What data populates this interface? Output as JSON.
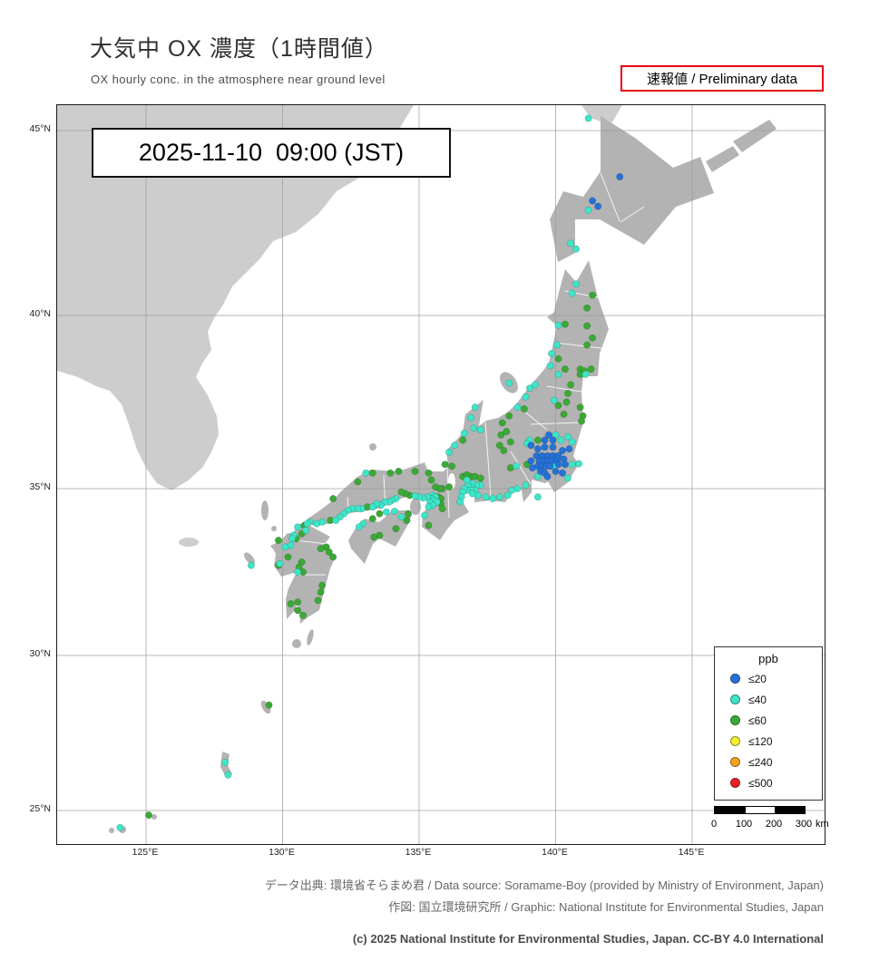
{
  "header": {
    "title": "大気中 OX 濃度（1時間値）",
    "subtitle": "OX hourly conc. in the atmosphere near ground level",
    "preliminary_label": "速報値 / Preliminary data",
    "timestamp": "2025-11-10  09:00 (JST)"
  },
  "map": {
    "lat_ticks": [
      {
        "label": "45°N",
        "value": 45
      },
      {
        "label": "40°N",
        "value": 40
      },
      {
        "label": "35°N",
        "value": 35
      },
      {
        "label": "30°N",
        "value": 30
      },
      {
        "label": "25°N",
        "value": 25
      }
    ],
    "lon_ticks": [
      {
        "label": "125°E",
        "value": 125
      },
      {
        "label": "130°E",
        "value": 130
      },
      {
        "label": "135°E",
        "value": 135
      },
      {
        "label": "140°E",
        "value": 140
      },
      {
        "label": "145°E",
        "value": 145
      }
    ]
  },
  "legend": {
    "title": "ppb",
    "items": [
      {
        "key": "le20",
        "label": "≤20",
        "color": "#2472d8"
      },
      {
        "key": "le40",
        "label": "≤40",
        "color": "#3ce6c8"
      },
      {
        "key": "le60",
        "label": "≤60",
        "color": "#3aaa35"
      },
      {
        "key": "le120",
        "label": "≤120",
        "color": "#f7ef2f"
      },
      {
        "key": "le240",
        "label": "≤240",
        "color": "#f9a11b"
      },
      {
        "key": "le500",
        "label": "≤500",
        "color": "#ed1c24"
      }
    ]
  },
  "scalebar": {
    "tick_labels": [
      "0",
      "100",
      "200",
      "300"
    ],
    "unit": "km"
  },
  "footer": {
    "source": "データ出典: 環境省そらまめ君 / Data source: Soramame-Boy (provided by Ministry of Environment, Japan)",
    "graphic": "作図: 国立環境研究所 / Graphic: National Institute for Environmental Studies, Japan",
    "copyright": "(c) 2025 National Institute for Environmental Studies, Japan. CC-BY 4.0 International"
  },
  "chart_data": {
    "type": "scatter",
    "units": {
      "x": "longitude_deg_E",
      "y": "latitude_deg_N",
      "value": "ppb_category"
    },
    "stations": {
      "le20": [
        [
          142.35,
          43.75
        ],
        [
          141.35,
          43.1
        ],
        [
          141.55,
          42.95
        ],
        [
          139.75,
          36.55
        ],
        [
          139.9,
          36.4
        ],
        [
          139.6,
          36.4
        ],
        [
          139.1,
          36.25
        ],
        [
          140.5,
          36.15
        ],
        [
          140.25,
          36.1
        ],
        [
          139.9,
          36.2
        ],
        [
          139.6,
          36.2
        ],
        [
          139.35,
          36.15
        ],
        [
          139.3,
          35.95
        ],
        [
          139.5,
          35.95
        ],
        [
          139.7,
          35.95
        ],
        [
          139.9,
          35.95
        ],
        [
          140.1,
          35.95
        ],
        [
          139.4,
          35.8
        ],
        [
          139.55,
          35.8
        ],
        [
          139.7,
          35.8
        ],
        [
          139.85,
          35.8
        ],
        [
          140.05,
          35.8
        ],
        [
          140.3,
          35.85
        ],
        [
          139.35,
          35.65
        ],
        [
          139.5,
          35.65
        ],
        [
          139.65,
          35.65
        ],
        [
          139.8,
          35.65
        ],
        [
          140.1,
          35.7
        ],
        [
          140.35,
          35.7
        ],
        [
          139.45,
          35.5
        ],
        [
          139.6,
          35.45
        ],
        [
          139.7,
          35.35
        ],
        [
          140.0,
          35.5
        ],
        [
          140.25,
          35.45
        ],
        [
          139.15,
          35.6
        ],
        [
          139.1,
          35.8
        ]
      ],
      "le40": [
        [
          141.2,
          45.33
        ],
        [
          141.2,
          42.85
        ],
        [
          140.75,
          41.8
        ],
        [
          140.55,
          41.95
        ],
        [
          140.75,
          40.85
        ],
        [
          140.6,
          40.6
        ],
        [
          140.1,
          39.72
        ],
        [
          140.05,
          39.15
        ],
        [
          139.85,
          38.9
        ],
        [
          139.8,
          38.55
        ],
        [
          139.05,
          37.9
        ],
        [
          139.25,
          38.0
        ],
        [
          138.9,
          37.65
        ],
        [
          138.6,
          37.35
        ],
        [
          138.3,
          38.05
        ],
        [
          140.1,
          38.3
        ],
        [
          141.1,
          38.3
        ],
        [
          139.95,
          37.55
        ],
        [
          140.0,
          36.55
        ],
        [
          139.05,
          36.4
        ],
        [
          138.95,
          36.3
        ],
        [
          140.2,
          36.4
        ],
        [
          140.45,
          36.5
        ],
        [
          140.6,
          36.35
        ],
        [
          139.95,
          35.65
        ],
        [
          140.6,
          35.7
        ],
        [
          140.85,
          35.72
        ],
        [
          139.35,
          35.35
        ],
        [
          140.45,
          35.3
        ],
        [
          139.35,
          34.75
        ],
        [
          138.55,
          35.65
        ],
        [
          138.9,
          35.1
        ],
        [
          138.6,
          35.0
        ],
        [
          138.4,
          34.95
        ],
        [
          138.25,
          34.8
        ],
        [
          137.95,
          34.75
        ],
        [
          137.7,
          34.7
        ],
        [
          137.45,
          34.75
        ],
        [
          137.25,
          35.1
        ],
        [
          137.1,
          35.1
        ],
        [
          136.95,
          35.15
        ],
        [
          136.9,
          35.05
        ],
        [
          136.8,
          35.1
        ],
        [
          137.05,
          34.95
        ],
        [
          136.9,
          34.95
        ],
        [
          136.75,
          34.95
        ],
        [
          137.15,
          34.8
        ],
        [
          136.95,
          34.85
        ],
        [
          136.65,
          35.0
        ],
        [
          136.75,
          35.25
        ],
        [
          136.6,
          34.9
        ],
        [
          136.55,
          34.75
        ],
        [
          136.5,
          34.6
        ],
        [
          137.25,
          36.7
        ],
        [
          137.0,
          36.75
        ],
        [
          136.65,
          36.6
        ],
        [
          136.3,
          36.25
        ],
        [
          136.1,
          36.05
        ],
        [
          136.9,
          37.05
        ],
        [
          137.05,
          37.35
        ],
        [
          135.5,
          34.8
        ],
        [
          135.6,
          34.75
        ],
        [
          135.45,
          34.7
        ],
        [
          135.55,
          34.65
        ],
        [
          135.65,
          34.6
        ],
        [
          135.4,
          34.6
        ],
        [
          135.5,
          34.5
        ],
        [
          135.35,
          34.45
        ],
        [
          135.2,
          34.2
        ],
        [
          135.3,
          34.75
        ],
        [
          135.15,
          34.72
        ],
        [
          135.0,
          34.75
        ],
        [
          134.85,
          34.78
        ],
        [
          134.15,
          34.7
        ],
        [
          134.0,
          34.65
        ],
        [
          133.9,
          34.6
        ],
        [
          133.75,
          34.6
        ],
        [
          133.6,
          34.5
        ],
        [
          133.45,
          34.55
        ],
        [
          133.3,
          34.45
        ],
        [
          132.9,
          34.4
        ],
        [
          132.75,
          34.4
        ],
        [
          132.55,
          34.4
        ],
        [
          132.4,
          34.35
        ],
        [
          132.25,
          34.25
        ],
        [
          132.1,
          34.15
        ],
        [
          131.95,
          34.05
        ],
        [
          131.45,
          34.0
        ],
        [
          131.25,
          33.95
        ],
        [
          131.0,
          34.0
        ],
        [
          133.05,
          35.45
        ],
        [
          134.35,
          34.15
        ],
        [
          134.1,
          34.32
        ],
        [
          133.8,
          34.3
        ],
        [
          132.95,
          33.95
        ],
        [
          132.8,
          33.85
        ],
        [
          130.9,
          33.95
        ],
        [
          130.55,
          33.85
        ],
        [
          130.4,
          33.6
        ],
        [
          130.35,
          33.5
        ],
        [
          130.85,
          33.75
        ],
        [
          130.3,
          33.3
        ],
        [
          130.1,
          33.25
        ],
        [
          129.9,
          32.75
        ],
        [
          130.55,
          32.5
        ],
        [
          128.85,
          32.7
        ],
        [
          127.9,
          26.55
        ],
        [
          128.0,
          26.15
        ],
        [
          124.05,
          24.45
        ]
      ],
      "le60": [
        [
          141.35,
          40.55
        ],
        [
          141.15,
          40.2
        ],
        [
          140.35,
          39.75
        ],
        [
          141.15,
          39.7
        ],
        [
          141.35,
          39.35
        ],
        [
          141.15,
          39.15
        ],
        [
          140.1,
          38.75
        ],
        [
          140.35,
          38.45
        ],
        [
          140.9,
          38.45
        ],
        [
          141.05,
          38.4
        ],
        [
          141.3,
          38.45
        ],
        [
          140.9,
          38.3
        ],
        [
          140.55,
          38.0
        ],
        [
          140.45,
          37.75
        ],
        [
          140.4,
          37.5
        ],
        [
          140.1,
          37.4
        ],
        [
          140.9,
          37.35
        ],
        [
          141.0,
          37.1
        ],
        [
          140.95,
          36.95
        ],
        [
          140.3,
          37.15
        ],
        [
          138.3,
          37.1
        ],
        [
          138.85,
          37.3
        ],
        [
          138.05,
          36.9
        ],
        [
          139.35,
          36.4
        ],
        [
          138.95,
          35.7
        ],
        [
          138.2,
          36.65
        ],
        [
          138.0,
          36.55
        ],
        [
          137.95,
          36.25
        ],
        [
          138.1,
          36.1
        ],
        [
          138.35,
          36.35
        ],
        [
          138.35,
          35.6
        ],
        [
          136.9,
          35.35
        ],
        [
          137.05,
          35.35
        ],
        [
          137.25,
          35.3
        ],
        [
          136.6,
          35.35
        ],
        [
          136.75,
          35.4
        ],
        [
          136.6,
          36.4
        ],
        [
          136.2,
          35.65
        ],
        [
          135.95,
          35.7
        ],
        [
          136.1,
          35.05
        ],
        [
          135.85,
          35.0
        ],
        [
          135.75,
          35.0
        ],
        [
          135.6,
          35.05
        ],
        [
          135.45,
          35.25
        ],
        [
          135.7,
          34.75
        ],
        [
          135.8,
          34.7
        ],
        [
          135.8,
          34.55
        ],
        [
          135.85,
          34.4
        ],
        [
          135.35,
          33.9
        ],
        [
          134.65,
          34.8
        ],
        [
          134.5,
          34.85
        ],
        [
          134.35,
          34.9
        ],
        [
          135.35,
          35.45
        ],
        [
          134.85,
          35.5
        ],
        [
          133.1,
          34.45
        ],
        [
          131.75,
          34.05
        ],
        [
          134.25,
          35.5
        ],
        [
          133.95,
          35.45
        ],
        [
          133.3,
          35.45
        ],
        [
          132.75,
          35.2
        ],
        [
          131.85,
          34.7
        ],
        [
          134.6,
          34.25
        ],
        [
          134.55,
          34.05
        ],
        [
          133.55,
          34.25
        ],
        [
          133.3,
          34.1
        ],
        [
          133.55,
          33.6
        ],
        [
          133.35,
          33.55
        ],
        [
          134.15,
          33.8
        ],
        [
          130.8,
          33.9
        ],
        [
          130.5,
          33.5
        ],
        [
          130.7,
          33.65
        ],
        [
          129.85,
          32.7
        ],
        [
          130.2,
          32.95
        ],
        [
          130.7,
          32.8
        ],
        [
          130.6,
          32.65
        ],
        [
          130.75,
          32.5
        ],
        [
          131.6,
          33.25
        ],
        [
          131.7,
          33.1
        ],
        [
          131.4,
          33.2
        ],
        [
          131.85,
          32.95
        ],
        [
          131.45,
          32.1
        ],
        [
          131.4,
          31.9
        ],
        [
          131.3,
          31.65
        ],
        [
          130.55,
          31.6
        ],
        [
          130.3,
          31.55
        ],
        [
          130.55,
          31.35
        ],
        [
          130.75,
          31.2
        ],
        [
          129.85,
          33.45
        ],
        [
          129.5,
          28.4
        ],
        [
          125.1,
          24.85
        ]
      ],
      "le120": [],
      "le240": [],
      "le500": []
    }
  }
}
